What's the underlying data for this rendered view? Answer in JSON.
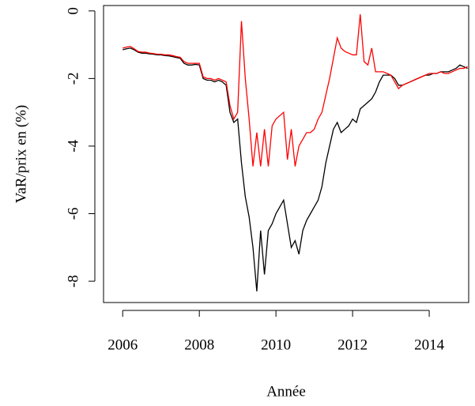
{
  "chart_data": {
    "type": "line",
    "xlabel": "Année",
    "ylabel": "VaR/prix en (%)",
    "x": [
      2006,
      2006.1,
      2006.2,
      2006.3,
      2006.4,
      2006.5,
      2006.6,
      2006.7,
      2006.8,
      2006.9,
      2007,
      2007.1,
      2007.2,
      2007.3,
      2007.4,
      2007.5,
      2007.6,
      2007.7,
      2007.8,
      2007.9,
      2008,
      2008.1,
      2008.2,
      2008.3,
      2008.4,
      2008.5,
      2008.6,
      2008.7,
      2008.8,
      2008.9,
      2009,
      2009.1,
      2009.2,
      2009.3,
      2009.4,
      2009.5,
      2009.6,
      2009.7,
      2009.8,
      2009.9,
      2010,
      2010.1,
      2010.2,
      2010.3,
      2010.4,
      2010.5,
      2010.6,
      2010.7,
      2010.8,
      2010.9,
      2011,
      2011.1,
      2011.2,
      2011.3,
      2011.4,
      2011.5,
      2011.6,
      2011.7,
      2011.8,
      2011.9,
      2012,
      2012.1,
      2012.2,
      2012.3,
      2012.4,
      2012.5,
      2012.6,
      2012.7,
      2012.8,
      2012.9,
      2013,
      2013.1,
      2013.2,
      2013.3,
      2013.4,
      2013.5,
      2013.6,
      2013.7,
      2013.8,
      2013.9,
      2014,
      2014.1,
      2014.2,
      2014.3,
      2014.4,
      2014.5,
      2014.6,
      2014.7,
      2014.8,
      2014.9,
      2015
    ],
    "series": [
      {
        "color": "#000000",
        "values": [
          -1.15,
          -1.12,
          -1.1,
          -1.15,
          -1.22,
          -1.25,
          -1.25,
          -1.27,
          -1.28,
          -1.3,
          -1.3,
          -1.32,
          -1.33,
          -1.35,
          -1.38,
          -1.4,
          -1.55,
          -1.6,
          -1.6,
          -1.58,
          -1.6,
          -2.0,
          -2.05,
          -2.05,
          -2.1,
          -2.05,
          -2.1,
          -2.2,
          -3.0,
          -3.3,
          -3.2,
          -4.5,
          -5.5,
          -6.1,
          -7.0,
          -8.3,
          -6.5,
          -7.8,
          -6.5,
          -6.3,
          -6.0,
          -5.8,
          -5.6,
          -6.3,
          -7.0,
          -6.8,
          -7.2,
          -6.5,
          -6.2,
          -6.0,
          -5.8,
          -5.6,
          -5.2,
          -4.5,
          -4.0,
          -3.5,
          -3.3,
          -3.6,
          -3.5,
          -3.4,
          -3.2,
          -3.3,
          -2.9,
          -2.8,
          -2.7,
          -2.6,
          -2.4,
          -2.1,
          -1.9,
          -1.9,
          -1.9,
          -2.0,
          -2.2,
          -2.2,
          -2.15,
          -2.1,
          -2.05,
          -2.0,
          -1.95,
          -1.9,
          -1.9,
          -1.85,
          -1.85,
          -1.8,
          -1.8,
          -1.8,
          -1.75,
          -1.7,
          -1.6,
          -1.65,
          -1.7
        ]
      },
      {
        "color": "#ff0000",
        "values": [
          -1.1,
          -1.07,
          -1.05,
          -1.12,
          -1.2,
          -1.22,
          -1.22,
          -1.25,
          -1.26,
          -1.28,
          -1.28,
          -1.3,
          -1.3,
          -1.32,
          -1.35,
          -1.37,
          -1.5,
          -1.55,
          -1.55,
          -1.55,
          -1.55,
          -1.95,
          -2.0,
          -2.0,
          -2.05,
          -2.0,
          -2.05,
          -2.1,
          -2.8,
          -3.2,
          -3.0,
          -0.3,
          -2.0,
          -3.2,
          -4.6,
          -3.6,
          -4.6,
          -3.5,
          -4.6,
          -3.4,
          -3.2,
          -3.1,
          -3.0,
          -4.4,
          -3.5,
          -4.6,
          -4.0,
          -3.8,
          -3.6,
          -3.6,
          -3.5,
          -3.2,
          -3.0,
          -2.5,
          -2.0,
          -1.4,
          -0.8,
          -1.1,
          -1.2,
          -1.25,
          -1.3,
          -1.3,
          -0.1,
          -1.5,
          -1.6,
          -1.1,
          -1.8,
          -1.8,
          -1.8,
          -1.85,
          -1.9,
          -2.1,
          -2.3,
          -2.2,
          -2.15,
          -2.1,
          -2.05,
          -2.0,
          -1.95,
          -1.9,
          -1.85,
          -1.85,
          -1.85,
          -1.8,
          -1.85,
          -1.85,
          -1.8,
          -1.75,
          -1.7,
          -1.7,
          -1.65
        ]
      }
    ],
    "xlim": [
      2005.5,
      2015.03
    ],
    "ylim": [
      -8.63,
      0.16
    ],
    "xticks": [
      2006,
      2008,
      2010,
      2012,
      2014
    ],
    "yticks": [
      0,
      -2,
      -4,
      -6,
      -8
    ]
  }
}
